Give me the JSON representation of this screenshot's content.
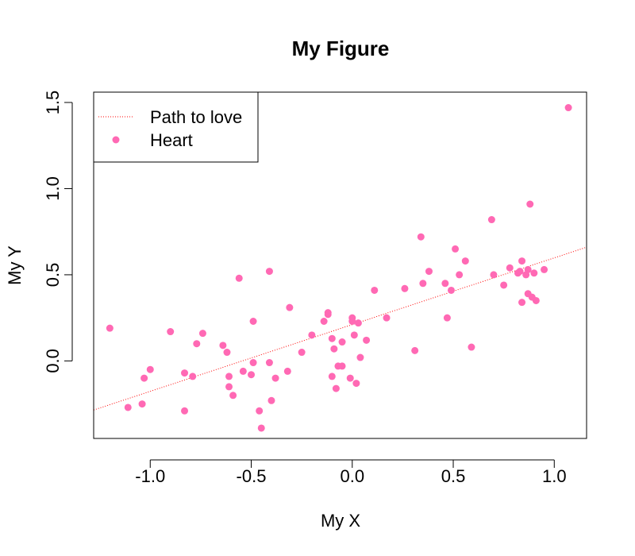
{
  "chart_data": {
    "type": "scatter",
    "title": "My Figure",
    "xlabel": "My X",
    "ylabel": "My Y",
    "xlim": [
      -1.28,
      1.16
    ],
    "ylim": [
      -0.45,
      1.56
    ],
    "x_ticks": [
      -1.0,
      -0.5,
      0.0,
      0.5,
      1.0
    ],
    "x_tick_labels": [
      "-1.0",
      "-0.5",
      "0.0",
      "0.5",
      "1.0"
    ],
    "y_ticks": [
      0.0,
      0.5,
      1.0,
      1.5
    ],
    "y_tick_labels": [
      "0.0",
      "0.5",
      "1.0",
      "1.5"
    ],
    "grid": false,
    "legend": {
      "position": "top-left",
      "entries": [
        {
          "label": "Path to love",
          "kind": "line",
          "color": "#ff0000"
        },
        {
          "label": "Heart",
          "kind": "point",
          "color": "#ff69b4"
        }
      ]
    },
    "series": [
      {
        "name": "Heart",
        "kind": "point",
        "color": "#ff69b4",
        "points": [
          [
            -1.2,
            0.19
          ],
          [
            -1.11,
            -0.27
          ],
          [
            -1.04,
            -0.25
          ],
          [
            -1.03,
            -0.1
          ],
          [
            -1.0,
            -0.05
          ],
          [
            -0.9,
            0.17
          ],
          [
            -0.83,
            -0.07
          ],
          [
            -0.83,
            -0.29
          ],
          [
            -0.79,
            -0.09
          ],
          [
            -0.77,
            0.1
          ],
          [
            -0.74,
            0.16
          ],
          [
            -0.64,
            0.09
          ],
          [
            -0.62,
            0.05
          ],
          [
            -0.61,
            -0.09
          ],
          [
            -0.61,
            -0.15
          ],
          [
            -0.59,
            -0.2
          ],
          [
            -0.56,
            0.48
          ],
          [
            -0.54,
            -0.06
          ],
          [
            -0.5,
            -0.08
          ],
          [
            -0.49,
            -0.01
          ],
          [
            -0.49,
            0.23
          ],
          [
            -0.46,
            -0.29
          ],
          [
            -0.45,
            -0.39
          ],
          [
            -0.41,
            0.52
          ],
          [
            -0.41,
            -0.01
          ],
          [
            -0.4,
            -0.23
          ],
          [
            -0.38,
            -0.1
          ],
          [
            -0.32,
            -0.06
          ],
          [
            -0.31,
            0.31
          ],
          [
            -0.25,
            0.05
          ],
          [
            -0.2,
            0.15
          ],
          [
            -0.14,
            0.23
          ],
          [
            -0.12,
            0.27
          ],
          [
            -0.12,
            0.28
          ],
          [
            -0.1,
            -0.09
          ],
          [
            -0.1,
            0.13
          ],
          [
            -0.09,
            0.07
          ],
          [
            -0.08,
            -0.16
          ],
          [
            -0.07,
            -0.03
          ],
          [
            -0.05,
            -0.03
          ],
          [
            -0.05,
            0.11
          ],
          [
            -0.01,
            -0.1
          ],
          [
            0.0,
            0.23
          ],
          [
            0.0,
            0.25
          ],
          [
            0.01,
            0.15
          ],
          [
            0.02,
            -0.13
          ],
          [
            0.03,
            0.22
          ],
          [
            0.04,
            0.02
          ],
          [
            0.07,
            0.12
          ],
          [
            0.11,
            0.41
          ],
          [
            0.17,
            0.25
          ],
          [
            0.26,
            0.42
          ],
          [
            0.31,
            0.06
          ],
          [
            0.34,
            0.72
          ],
          [
            0.35,
            0.45
          ],
          [
            0.38,
            0.52
          ],
          [
            0.46,
            0.45
          ],
          [
            0.47,
            0.25
          ],
          [
            0.49,
            0.41
          ],
          [
            0.51,
            0.65
          ],
          [
            0.53,
            0.5
          ],
          [
            0.56,
            0.58
          ],
          [
            0.59,
            0.08
          ],
          [
            0.69,
            0.82
          ],
          [
            0.7,
            0.5
          ],
          [
            0.75,
            0.44
          ],
          [
            0.78,
            0.54
          ],
          [
            0.82,
            0.51
          ],
          [
            0.83,
            0.52
          ],
          [
            0.84,
            0.58
          ],
          [
            0.84,
            0.34
          ],
          [
            0.86,
            0.5
          ],
          [
            0.87,
            0.53
          ],
          [
            0.87,
            0.39
          ],
          [
            0.88,
            0.91
          ],
          [
            0.89,
            0.37
          ],
          [
            0.9,
            0.51
          ],
          [
            0.91,
            0.35
          ],
          [
            0.95,
            0.53
          ],
          [
            1.07,
            1.47
          ]
        ]
      },
      {
        "name": "Path to love",
        "kind": "line",
        "color": "#ff0000",
        "line_style": "dotted",
        "points": [
          [
            -1.28,
            -0.285
          ],
          [
            1.16,
            0.66
          ]
        ]
      }
    ]
  }
}
